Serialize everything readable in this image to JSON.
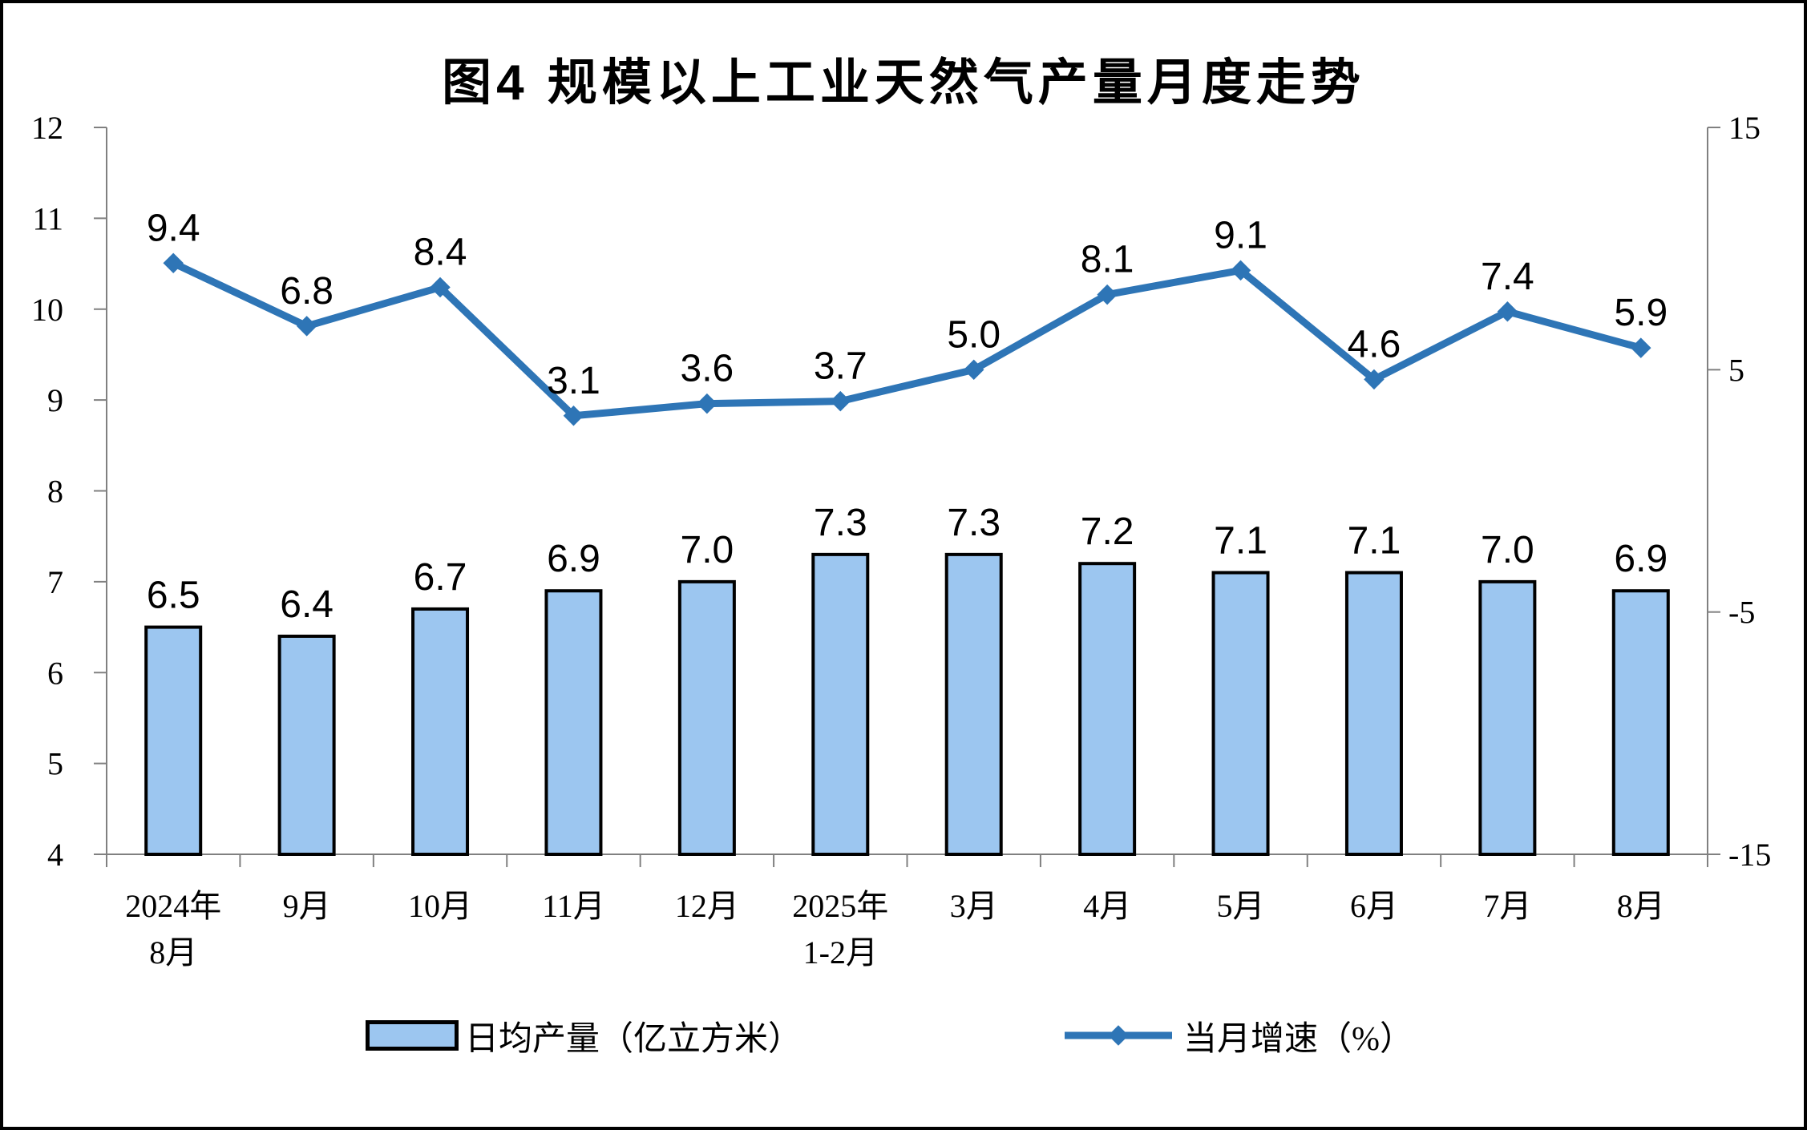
{
  "chart_data": {
    "type": "combo",
    "title": "图4 规模以上工业天然气产量月度走势",
    "categories": [
      "2024年8月",
      "9月",
      "10月",
      "11月",
      "12月",
      "2025年1-2月",
      "3月",
      "4月",
      "5月",
      "6月",
      "7月",
      "8月"
    ],
    "categories_display": [
      [
        "2024年",
        "8月"
      ],
      [
        "9月"
      ],
      [
        "10月"
      ],
      [
        "11月"
      ],
      [
        "12月"
      ],
      [
        "2025年",
        "1-2月"
      ],
      [
        "3月"
      ],
      [
        "4月"
      ],
      [
        "5月"
      ],
      [
        "6月"
      ],
      [
        "7月"
      ],
      [
        "8月"
      ]
    ],
    "series": [
      {
        "name": "日均产量（亿立方米）",
        "type": "bar",
        "axis": "left",
        "values": [
          6.5,
          6.4,
          6.7,
          6.9,
          7.0,
          7.3,
          7.3,
          7.2,
          7.1,
          7.1,
          7.0,
          6.9
        ],
        "fill": "#9CC6F0",
        "stroke": "#000000"
      },
      {
        "name": "当月增速（%）",
        "type": "line",
        "axis": "right",
        "values": [
          9.4,
          6.8,
          8.4,
          3.1,
          3.6,
          3.7,
          5.0,
          8.1,
          9.1,
          4.6,
          7.4,
          5.9
        ],
        "color": "#2E75B6",
        "marker": "diamond"
      }
    ],
    "left_axis": {
      "min": 4,
      "max": 12,
      "ticks": [
        4,
        5,
        6,
        7,
        8,
        9,
        10,
        11,
        12
      ]
    },
    "right_axis": {
      "min": -15,
      "max": 15,
      "ticks": [
        -15,
        -5,
        5,
        15
      ]
    },
    "grid": false,
    "legend_position": "bottom",
    "axis_color": "#808080",
    "text_color": "#000000",
    "background": "#FFFFFF"
  }
}
